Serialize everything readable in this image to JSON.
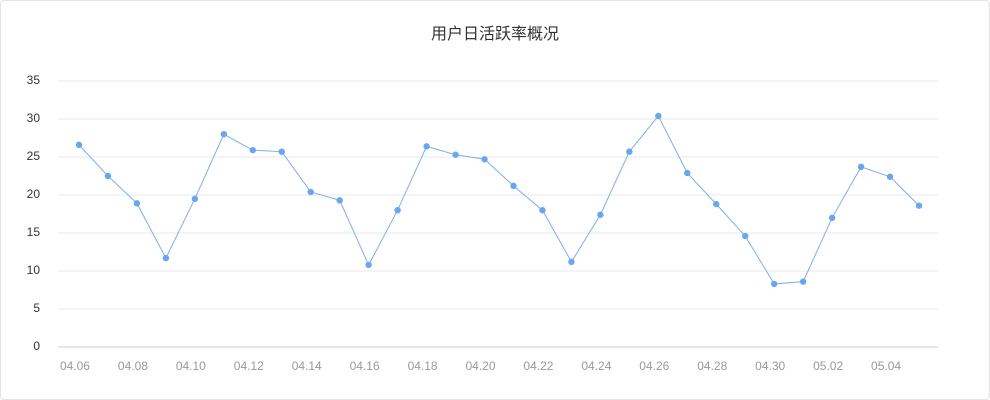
{
  "chart_data": {
    "type": "line",
    "title": "用户日活跃率概况",
    "categories": [
      "04.06",
      null,
      "04.08",
      null,
      "04.10",
      null,
      "04.12",
      null,
      "04.14",
      null,
      "04.16",
      null,
      "04.18",
      null,
      "04.20",
      null,
      "04.22",
      null,
      "04.24",
      null,
      "04.26",
      null,
      "04.28",
      null,
      "04.30",
      null,
      "05.02",
      null,
      "05.04",
      null
    ],
    "series": [
      {
        "name": "日活跃率",
        "color": "#7ab0ee",
        "values": [
          26.6,
          22.5,
          18.9,
          11.7,
          19.5,
          28.0,
          25.9,
          25.7,
          20.4,
          19.3,
          10.8,
          18.0,
          26.4,
          25.3,
          24.7,
          21.2,
          18.0,
          11.2,
          17.4,
          25.7,
          30.4,
          22.9,
          18.8,
          14.6,
          8.3,
          8.6,
          17.0,
          23.7,
          22.4,
          18.6
        ]
      }
    ],
    "ylim": [
      0,
      35
    ],
    "yticks": [
      0,
      5,
      10,
      15,
      20,
      25,
      30,
      35
    ],
    "grid": true
  }
}
